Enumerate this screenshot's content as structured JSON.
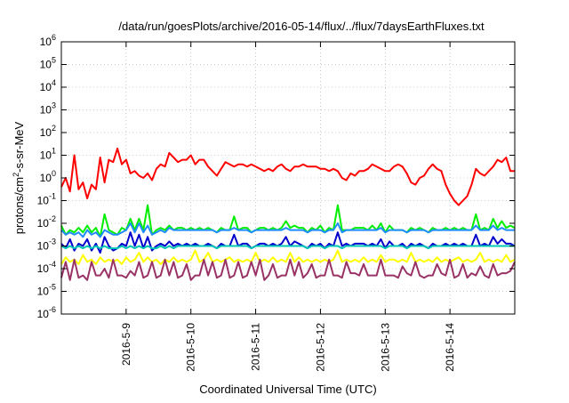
{
  "chart_data": {
    "type": "line",
    "title": "/data/run/goesPlots/archive/2016-05-14/flux/../flux/7daysEarthFluxes.txt",
    "xlabel": "Coordinated Universal Time (UTC)",
    "ylabel": "protons/cm²-s-sr-MeV",
    "ylabel_parts": {
      "base": "protons/cm",
      "sup": "2",
      "rest": "-s-sr-MeV"
    },
    "yscale": "log",
    "ylim": [
      -6,
      6
    ],
    "yticks": [
      {
        "base": "10",
        "exp": "-6",
        "pow": -6
      },
      {
        "base": "10",
        "exp": "-5",
        "pow": -5
      },
      {
        "base": "10",
        "exp": "-4",
        "pow": -4
      },
      {
        "base": "10",
        "exp": "-3",
        "pow": -3
      },
      {
        "base": "10",
        "exp": "-2",
        "pow": -2
      },
      {
        "base": "10",
        "exp": "-1",
        "pow": -1
      },
      {
        "base": "10",
        "exp": "0",
        "pow": 0
      },
      {
        "base": "10",
        "exp": "1",
        "pow": 1
      },
      {
        "base": "10",
        "exp": "2",
        "pow": 2
      },
      {
        "base": "10",
        "exp": "3",
        "pow": 3
      },
      {
        "base": "10",
        "exp": "4",
        "pow": 4
      },
      {
        "base": "10",
        "exp": "5",
        "pow": 5
      },
      {
        "base": "10",
        "exp": "6",
        "pow": 6
      }
    ],
    "xlim": [
      "2016-05-08 00:00",
      "2016-05-15 00:00"
    ],
    "xticks": [
      {
        "label": "2016-5-9",
        "day": 1
      },
      {
        "label": "2016-5-10",
        "day": 2
      },
      {
        "label": "2016-5-11",
        "day": 3
      },
      {
        "label": "2016-5-12",
        "day": 4
      },
      {
        "label": "2016-5-13",
        "day": 5
      },
      {
        "label": "2016-5-14",
        "day": 6
      }
    ],
    "grid": true,
    "series": [
      {
        "color": "#ff0000",
        "log10_values": [
          -0.4,
          0,
          -0.6,
          1,
          -0.5,
          -0.2,
          -0.9,
          -0.3,
          -0.5,
          0.9,
          -0.2,
          0.8,
          0.7,
          1.3,
          0.6,
          0.8,
          0.2,
          0.3,
          0.1,
          0,
          0.2,
          -0.1,
          0.4,
          0.6,
          0.5,
          1.1,
          0.9,
          0.7,
          0.8,
          0.8,
          1,
          0.6,
          0.8,
          0.8,
          0.5,
          0.3,
          0.1,
          0.4,
          0.7,
          0.6,
          0.5,
          0.6,
          0.6,
          0.5,
          0.6,
          0.5,
          0.4,
          0.3,
          0.4,
          0.3,
          0.5,
          0.6,
          0.4,
          0.3,
          0.5,
          0.5,
          0.6,
          0.5,
          0.5,
          0.5,
          0.4,
          0.4,
          0.3,
          0.4,
          0.3,
          0,
          -0.1,
          0.2,
          0.1,
          0.3,
          0.3,
          0.4,
          0.6,
          0.5,
          0.4,
          0.3,
          0.3,
          0.5,
          0.6,
          0.5,
          0.2,
          -0.2,
          -0.3,
          0,
          0.1,
          0.4,
          0.6,
          0.4,
          0.3,
          -0.3,
          -0.7,
          -1.0,
          -1.2,
          -1.0,
          -0.8,
          -0.3,
          0.4,
          0.2,
          0.1,
          0.3,
          0.5,
          0.8,
          0.7,
          0.9,
          0.3,
          0.3
        ]
      },
      {
        "color": "#00ee00",
        "log10_values": [
          -2.1,
          -2.5,
          -2.3,
          -2.4,
          -2.2,
          -2.4,
          -2.1,
          -2.4,
          -2.2,
          -2.6,
          -1.6,
          -2.3,
          -2.4,
          -2.5,
          -2.2,
          -2.3,
          -1.8,
          -2.3,
          -1.8,
          -2.3,
          -1.2,
          -2.5,
          -2.3,
          -2.2,
          -2.3,
          -2.1,
          -2.3,
          -2.2,
          -2.2,
          -2.3,
          -2.2,
          -2.3,
          -2.2,
          -2.3,
          -2.2,
          -2.3,
          -2.4,
          -2.2,
          -2.3,
          -2.3,
          -1.7,
          -2.3,
          -2.2,
          -2.2,
          -2.4,
          -2.3,
          -2.2,
          -2.2,
          -2.3,
          -2.2,
          -2.3,
          -2.2,
          -1.9,
          -2.2,
          -2.1,
          -2.2,
          -2.2,
          -2.4,
          -2.2,
          -2.3,
          -2.1,
          -2.4,
          -2.2,
          -2.3,
          -1.2,
          -2.3,
          -2.3,
          -2.3,
          -2.2,
          -2.2,
          -2.2,
          -2.3,
          -2.1,
          -2.3,
          -2.0,
          -2.4,
          -2.1,
          -2.3,
          -2.3,
          -2.3,
          -2.4,
          -2.2,
          -2.3,
          -2.2,
          -2.3,
          -2.4,
          -2.2,
          -2.3,
          -2.3,
          -2.2,
          -2.3,
          -2.2,
          -2.3,
          -2.2,
          -2.3,
          -2.3,
          -1.6,
          -2.3,
          -2.2,
          -2.3,
          -1.8,
          -2.2,
          -1.9,
          -2.2,
          -2.1,
          -2.2
        ]
      },
      {
        "color": "#1e8cff",
        "log10_values": [
          -2.3,
          -2.5,
          -2.4,
          -2.5,
          -2.4,
          -2.6,
          -2.3,
          -2.5,
          -2.4,
          -2.6,
          -2.3,
          -2.4,
          -2.5,
          -2.5,
          -2.4,
          -2.3,
          -2.0,
          -2.4,
          -2.0,
          -2.4,
          -2.1,
          -2.5,
          -2.4,
          -2.3,
          -2.4,
          -2.2,
          -2.3,
          -2.3,
          -2.3,
          -2.3,
          -2.3,
          -2.3,
          -2.3,
          -2.3,
          -2.3,
          -2.3,
          -2.4,
          -2.3,
          -2.3,
          -2.3,
          -2.2,
          -2.3,
          -2.3,
          -2.3,
          -2.4,
          -2.3,
          -2.3,
          -2.3,
          -2.3,
          -2.3,
          -2.3,
          -2.3,
          -2.2,
          -2.3,
          -2.3,
          -2.3,
          -2.3,
          -2.4,
          -2.3,
          -2.3,
          -2.3,
          -2.4,
          -2.3,
          -2.3,
          -2.0,
          -2.4,
          -2.3,
          -2.3,
          -2.3,
          -2.3,
          -2.3,
          -2.3,
          -2.3,
          -2.3,
          -2.2,
          -2.4,
          -2.3,
          -2.3,
          -2.3,
          -2.3,
          -2.4,
          -2.3,
          -2.3,
          -2.3,
          -2.3,
          -2.4,
          -2.3,
          -2.3,
          -2.3,
          -2.3,
          -2.3,
          -2.3,
          -2.3,
          -2.3,
          -2.3,
          -2.3,
          -2.1,
          -2.3,
          -2.3,
          -2.3,
          -2.1,
          -2.3,
          -2.2,
          -2.3,
          -2.3,
          -2.3
        ]
      },
      {
        "color": "#0000cc",
        "log10_values": [
          -2.9,
          -3.1,
          -2.7,
          -3.2,
          -2.9,
          -3.0,
          -2.7,
          -3.2,
          -2.9,
          -3.3,
          -2.6,
          -3.0,
          -3.2,
          -3.1,
          -2.9,
          -3.0,
          -2.4,
          -3.0,
          -2.5,
          -3.1,
          -2.6,
          -3.2,
          -3.0,
          -2.9,
          -3.0,
          -2.8,
          -3.0,
          -2.9,
          -3.0,
          -2.9,
          -3.0,
          -2.9,
          -3.0,
          -3.0,
          -2.9,
          -3.0,
          -3.1,
          -2.9,
          -3.0,
          -3.0,
          -2.5,
          -3.0,
          -2.9,
          -2.9,
          -3.1,
          -3.0,
          -2.9,
          -2.9,
          -3.0,
          -2.9,
          -3.0,
          -2.9,
          -2.6,
          -3.0,
          -2.8,
          -2.9,
          -3.0,
          -3.1,
          -2.9,
          -3.0,
          -2.9,
          -3.1,
          -2.9,
          -3.0,
          -2.4,
          -3.0,
          -2.9,
          -3.0,
          -2.9,
          -2.9,
          -2.9,
          -3.0,
          -2.9,
          -3.0,
          -2.7,
          -3.1,
          -2.8,
          -3.0,
          -3.0,
          -2.9,
          -3.1,
          -2.9,
          -3.0,
          -2.9,
          -3.0,
          -3.1,
          -2.9,
          -3.0,
          -3.0,
          -2.9,
          -3.0,
          -2.9,
          -3.0,
          -2.9,
          -3.0,
          -3.0,
          -2.5,
          -3.0,
          -2.9,
          -3.0,
          -2.6,
          -2.9,
          -2.7,
          -2.9,
          -2.9,
          -3.0
        ]
      },
      {
        "color": "#00c8b4",
        "log10_values": [
          -3.0,
          -3.1,
          -3.0,
          -3.1,
          -3.0,
          -3.1,
          -3.0,
          -3.1,
          -3.0,
          -3.1,
          -3.0,
          -3.1,
          -3.1,
          -3.1,
          -3.0,
          -3.1,
          -3.0,
          -3.1,
          -3.0,
          -3.1,
          -3.0,
          -3.1,
          -3.1,
          -3.0,
          -3.1,
          -3.0,
          -3.1,
          -3.0,
          -3.0,
          -3.0,
          -3.0,
          -3.0,
          -3.0,
          -3.0,
          -3.0,
          -3.0,
          -3.1,
          -3.0,
          -3.0,
          -3.0,
          -3.0,
          -3.0,
          -3.0,
          -3.0,
          -3.1,
          -3.0,
          -3.0,
          -3.0,
          -3.0,
          -3.0,
          -3.0,
          -3.0,
          -3.0,
          -3.0,
          -3.0,
          -3.0,
          -3.0,
          -3.1,
          -3.0,
          -3.0,
          -3.0,
          -3.1,
          -3.0,
          -3.0,
          -3.0,
          -3.1,
          -3.0,
          -3.0,
          -3.0,
          -3.0,
          -3.0,
          -3.0,
          -3.0,
          -3.0,
          -3.0,
          -3.1,
          -3.0,
          -3.0,
          -3.0,
          -3.0,
          -3.1,
          -3.0,
          -3.0,
          -3.0,
          -3.0,
          -3.1,
          -3.0,
          -3.0,
          -3.0,
          -3.0,
          -3.0,
          -3.0,
          -3.0,
          -3.0,
          -3.0,
          -3.0,
          -3.0,
          -3.0,
          -3.0,
          -3.0,
          -3.0,
          -3.0,
          -3.0,
          -3.0,
          -3.0,
          -3.0
        ]
      },
      {
        "color": "#ffff00",
        "log10_values": [
          -3.8,
          -3.5,
          -3.7,
          -3.6,
          -3.8,
          -3.4,
          -3.7,
          -3.6,
          -3.8,
          -3.5,
          -3.7,
          -3.6,
          -3.7,
          -3.6,
          -3.8,
          -3.5,
          -3.7,
          -3.6,
          -3.3,
          -3.7,
          -3.5,
          -3.7,
          -3.6,
          -3.8,
          -3.6,
          -3.7,
          -3.5,
          -3.7,
          -3.6,
          -3.7,
          -3.6,
          -3.2,
          -3.7,
          -3.6,
          -3.3,
          -3.7,
          -3.6,
          -3.7,
          -3.6,
          -3.5,
          -3.7,
          -3.6,
          -3.7,
          -3.6,
          -3.7,
          -3.3,
          -3.7,
          -3.6,
          -3.7,
          -3.5,
          -3.7,
          -3.6,
          -3.7,
          -3.3,
          -3.7,
          -3.5,
          -3.7,
          -3.6,
          -3.7,
          -3.6,
          -3.7,
          -3.6,
          -3.7,
          -3.6,
          -3.2,
          -3.7,
          -3.6,
          -3.7,
          -3.6,
          -3.7,
          -3.5,
          -3.7,
          -3.6,
          -3.7,
          -3.4,
          -3.7,
          -3.6,
          -3.6,
          -3.7,
          -3.6,
          -3.7,
          -3.3,
          -3.7,
          -3.6,
          -3.7,
          -3.6,
          -3.7,
          -3.5,
          -3.7,
          -3.6,
          -3.7,
          -3.6,
          -3.5,
          -3.7,
          -3.6,
          -3.7,
          -3.6,
          -3.3,
          -3.7,
          -3.6,
          -3.7,
          -3.6,
          -3.7,
          -3.4,
          -3.7,
          -3.6
        ]
      },
      {
        "color": "#993366",
        "log10_values": [
          -4.4,
          -3.7,
          -4.5,
          -3.6,
          -4.4,
          -4.3,
          -4.5,
          -3.7,
          -4.3,
          -4.3,
          -4.0,
          -4.4,
          -3.6,
          -4.3,
          -4.3,
          -4.4,
          -4.1,
          -4.3,
          -3.7,
          -4.4,
          -4.3,
          -3.7,
          -4.4,
          -4.3,
          -3.6,
          -4.3,
          -3.7,
          -4.4,
          -4.3,
          -3.8,
          -4.5,
          -4.3,
          -4.3,
          -3.6,
          -4.3,
          -3.7,
          -4.4,
          -4.3,
          -3.6,
          -4.4,
          -4.3,
          -3.7,
          -4.4,
          -4.3,
          -3.7,
          -4.3,
          -3.6,
          -4.5,
          -4.3,
          -3.8,
          -4.4,
          -4.3,
          -4.3,
          -3.6,
          -4.3,
          -3.7,
          -4.4,
          -4.2,
          -3.8,
          -4.4,
          -4.3,
          -4.3,
          -3.6,
          -4.3,
          -4.3,
          -4.4,
          -3.7,
          -4.2,
          -4.2,
          -4.3,
          -3.8,
          -4.3,
          -4.3,
          -4.3,
          -3.6,
          -4.3,
          -4.3,
          -4.3,
          -4.4,
          -3.9,
          -4.2,
          -4.3,
          -3.7,
          -4.3,
          -4.4,
          -4.3,
          -4.3,
          -3.8,
          -4.2,
          -4.3,
          -3.6,
          -4.4,
          -4.3,
          -3.8,
          -4.4,
          -4.2,
          -4.3,
          -3.9,
          -4.3,
          -4.4,
          -3.8,
          -4.3,
          -4.2,
          -4.2,
          -4.1,
          -3.7
        ]
      }
    ]
  }
}
